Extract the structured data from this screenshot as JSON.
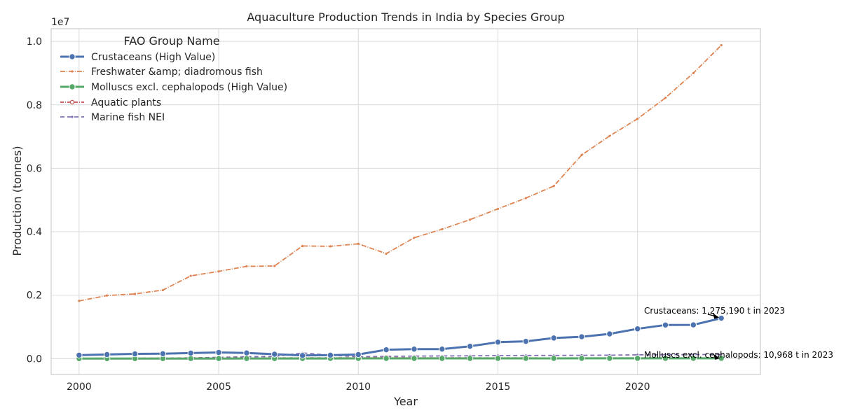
{
  "chart_data": {
    "type": "line",
    "title": "Aquaculture Production Trends in India by Species Group",
    "xlabel": "Year",
    "ylabel": "Production (tonnes)",
    "y_offset_text": "1e7",
    "xlim": [
      1999,
      2024.4
    ],
    "ylim": [
      -500000,
      10400000
    ],
    "x_ticks": [
      2000,
      2005,
      2010,
      2015,
      2020
    ],
    "x_tick_labels": [
      "2000",
      "2005",
      "2010",
      "2015",
      "2020"
    ],
    "y_ticks": [
      0,
      2000000,
      4000000,
      6000000,
      8000000,
      10000000
    ],
    "y_tick_labels": [
      "0.0",
      "0.2",
      "0.4",
      "0.6",
      "0.8",
      "1.0"
    ],
    "grid": true,
    "legend": {
      "title": "FAO Group Name",
      "placement": "top-left"
    },
    "x": [
      2000,
      2001,
      2002,
      2003,
      2004,
      2005,
      2006,
      2007,
      2008,
      2009,
      2010,
      2011,
      2012,
      2013,
      2014,
      2015,
      2016,
      2017,
      2018,
      2019,
      2020,
      2021,
      2022,
      2023
    ],
    "series": [
      {
        "name": "Crustaceans (High Value)",
        "color": "#4c72b0",
        "style": "solid-marker",
        "values": [
          110000,
          130000,
          150000,
          155000,
          175000,
          195000,
          180000,
          140000,
          100000,
          110000,
          130000,
          280000,
          300000,
          300000,
          390000,
          520000,
          545000,
          650000,
          690000,
          780000,
          940000,
          1060000,
          1065000,
          1275190
        ]
      },
      {
        "name": "Freshwater &amp; diadromous fish",
        "color": "#dd8452",
        "style": "dash-dot",
        "values": [
          1820000,
          1990000,
          2040000,
          2160000,
          2610000,
          2750000,
          2910000,
          2920000,
          3550000,
          3540000,
          3620000,
          3310000,
          3810000,
          4080000,
          4380000,
          4720000,
          5060000,
          5440000,
          6420000,
          7020000,
          7560000,
          8220000,
          9000000,
          9880000
        ]
      },
      {
        "name": "Molluscs excl. cephalopods (High Value)",
        "color": "#55a868",
        "style": "solid-marker",
        "values": [
          2000,
          2200,
          2500,
          3000,
          3500,
          4000,
          4500,
          5000,
          5500,
          6000,
          6500,
          7000,
          7200,
          7500,
          7800,
          8000,
          8200,
          8500,
          8800,
          9200,
          9600,
          10000,
          10400,
          10968
        ]
      },
      {
        "name": "Aquatic plants",
        "color": "#c44e52",
        "style": "dash-dot-marker",
        "values": [
          10000,
          12000,
          14000,
          15000,
          16000,
          18000,
          20000,
          22000,
          24000,
          26000,
          28000,
          30000,
          28000,
          26000,
          25000,
          24000,
          22000,
          20000,
          18000,
          16000,
          15000,
          14000,
          12000,
          10000
        ]
      },
      {
        "name": "Marine fish NEI",
        "color": "#8172b3",
        "style": "dash",
        "values": [
          5000,
          8000,
          10000,
          15000,
          25000,
          40000,
          60000,
          70000,
          180000,
          110000,
          60000,
          70000,
          80000,
          85000,
          90000,
          95000,
          100000,
          100000,
          105000,
          110000,
          120000,
          125000,
          128000,
          130000
        ]
      }
    ],
    "annotations": [
      {
        "text": "Crustaceans: 1,275,190 t in 2023",
        "x": 2023,
        "y": 1275190
      },
      {
        "text": "Molluscs excl. cephalopods: 10,968 t in 2023",
        "x": 2023,
        "y": 10968
      }
    ]
  }
}
